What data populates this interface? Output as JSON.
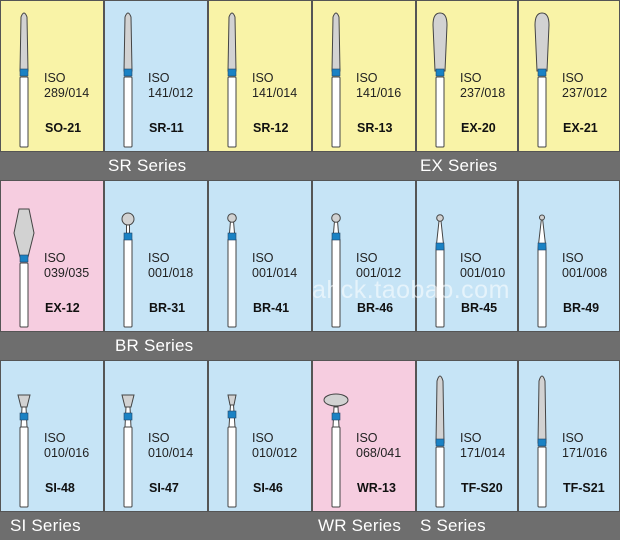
{
  "colors": {
    "yellow": "#f9f3a7",
    "blue": "#c6e4f6",
    "pink": "#f6cde0",
    "band": "#6e6e6e",
    "ring": "#1a82c4"
  },
  "rows": [
    {
      "series_labels": [
        "SR Series",
        "EX Series"
      ],
      "cells": [
        {
          "color": "yellow",
          "iso": "ISO",
          "size": "289/014",
          "code": "SO-21",
          "shape": "taper-round"
        },
        {
          "color": "blue",
          "iso": "ISO",
          "size": "141/012",
          "code": "SR-11",
          "shape": "taper-round"
        },
        {
          "color": "yellow",
          "iso": "ISO",
          "size": "141/014",
          "code": "SR-12",
          "shape": "taper-round"
        },
        {
          "color": "yellow",
          "iso": "ISO",
          "size": "141/016",
          "code": "SR-13",
          "shape": "taper-round"
        },
        {
          "color": "yellow",
          "iso": "ISO",
          "size": "237/018",
          "code": "EX-20",
          "shape": "pear"
        },
        {
          "color": "yellow",
          "iso": "ISO",
          "size": "237/012",
          "code": "EX-21",
          "shape": "pear"
        }
      ]
    },
    {
      "series_labels": [
        "BR Series"
      ],
      "cells": [
        {
          "color": "pink",
          "iso": "ISO",
          "size": "039/035",
          "code": "EX-12",
          "shape": "football"
        },
        {
          "color": "blue",
          "iso": "ISO",
          "size": "001/018",
          "code": "BR-31",
          "shape": "ball-large"
        },
        {
          "color": "blue",
          "iso": "ISO",
          "size": "001/014",
          "code": "BR-41",
          "shape": "ball"
        },
        {
          "color": "blue",
          "iso": "ISO",
          "size": "001/012",
          "code": "BR-46",
          "shape": "ball"
        },
        {
          "color": "blue",
          "iso": "ISO",
          "size": "001/010",
          "code": "BR-45",
          "shape": "ball-small"
        },
        {
          "color": "blue",
          "iso": "ISO",
          "size": "001/008",
          "code": "BR-49",
          "shape": "ball-tiny"
        }
      ]
    },
    {
      "series_labels": [
        "SI Series",
        "WR Series",
        "S Series"
      ],
      "cells": [
        {
          "color": "blue",
          "iso": "ISO",
          "size": "010/016",
          "code": "SI-48",
          "shape": "inverted-cone"
        },
        {
          "color": "blue",
          "iso": "ISO",
          "size": "010/014",
          "code": "SI-47",
          "shape": "inverted-cone"
        },
        {
          "color": "blue",
          "iso": "ISO",
          "size": "010/012",
          "code": "SI-46",
          "shape": "inverted-cone-small"
        },
        {
          "color": "pink",
          "iso": "ISO",
          "size": "068/041",
          "code": "WR-13",
          "shape": "wheel"
        },
        {
          "color": "blue",
          "iso": "ISO",
          "size": "171/014",
          "code": "TF-S20",
          "shape": "flame"
        },
        {
          "color": "blue",
          "iso": "ISO",
          "size": "171/016",
          "code": "TF-S21",
          "shape": "flame"
        }
      ]
    }
  ],
  "watermark": "ahck.taobao.com"
}
